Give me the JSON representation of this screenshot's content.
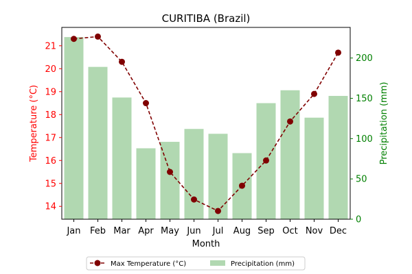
{
  "chart_data": {
    "type": "bar+line",
    "title": "CURITIBA (Brazil)",
    "xlabel": "Month",
    "ylabel_left": "Temperature (°C)",
    "ylabel_right": "Precipitation (mm)",
    "categories": [
      "Jan",
      "Feb",
      "Mar",
      "Apr",
      "May",
      "Jun",
      "Jul",
      "Aug",
      "Sep",
      "Oct",
      "Nov",
      "Dec"
    ],
    "series": [
      {
        "name": "Max Temperature (°C)",
        "kind": "line",
        "axis": "left",
        "color": "#800000",
        "values": [
          21.3,
          21.4,
          20.3,
          18.5,
          15.5,
          14.3,
          13.8,
          14.9,
          16.0,
          17.7,
          18.9,
          20.7
        ]
      },
      {
        "name": "Precipitation (mm)",
        "kind": "bar",
        "axis": "right",
        "color": "#b1d8b1",
        "values": [
          226,
          189,
          151,
          88,
          96,
          112,
          106,
          82,
          144,
          160,
          126,
          153
        ]
      }
    ],
    "ylim_left": [
      13.44,
      21.8
    ],
    "yticks_left": [
      14,
      15,
      16,
      17,
      18,
      19,
      20,
      21
    ],
    "ylim_right": [
      0,
      238
    ],
    "yticks_right": [
      0,
      50,
      100,
      150,
      200
    ],
    "left_axis_color": "#ff0000",
    "right_axis_color": "#008000",
    "grid": false,
    "legend_position": "bottom-center"
  }
}
